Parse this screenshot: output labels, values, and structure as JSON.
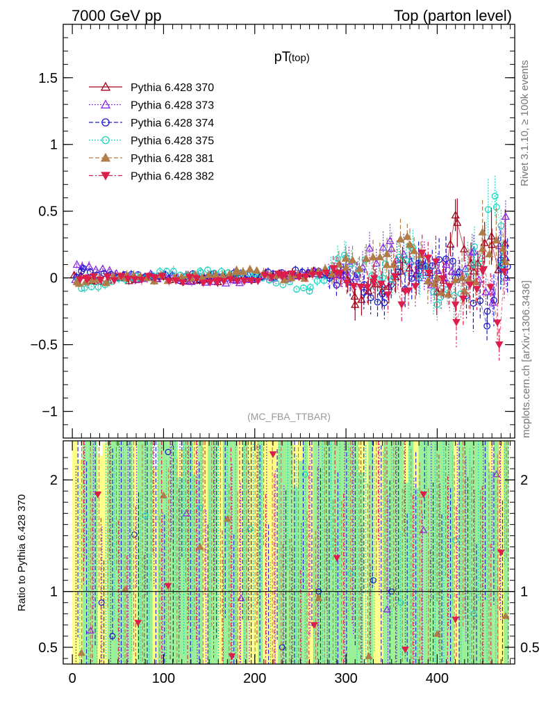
{
  "header": {
    "left_title": "7000 GeV pp",
    "right_title": "Top (parton level)"
  },
  "side_labels": {
    "rivet": "Rivet 3.1.10, ≥ 100k events",
    "mcplots": "mcplots.cern.ch [arXiv:1306.3436]"
  },
  "chart_data": [
    {
      "type": "scatter",
      "title": "pT",
      "title_sub": "(top)",
      "watermark": "(MC_FBA_TTBAR)",
      "xlabel": "",
      "ylabel": "",
      "xlim": [
        -10,
        485
      ],
      "ylim": [
        -1.2,
        1.9
      ],
      "yticks": [
        -1,
        -0.5,
        0,
        0.5,
        1,
        1.5
      ],
      "ytick_labels": [
        "−1",
        "−0.5",
        "0",
        "0.5",
        "1",
        "1.5"
      ],
      "legend_position": "top-left",
      "series": [
        {
          "name": "Pythia 6.428 370",
          "color": "#a00018",
          "marker": "triangle-open",
          "line": "solid",
          "x": [
            20,
            60,
            100,
            140,
            180,
            220,
            260,
            300,
            310,
            340,
            360,
            380,
            400,
            420,
            440,
            460,
            475
          ],
          "y": [
            -0.02,
            0.0,
            0.01,
            -0.01,
            0.0,
            0.02,
            0.03,
            0.05,
            -0.2,
            -0.05,
            0.05,
            0.1,
            -0.1,
            0.47,
            0.05,
            0.25,
            0.15
          ]
        },
        {
          "name": "Pythia 6.428 373",
          "color": "#8a2be2",
          "marker": "triangle-open",
          "line": "dotted",
          "x": [
            5,
            60,
            120,
            180,
            240,
            300,
            350,
            380,
            410,
            440,
            460,
            475
          ],
          "y": [
            0.1,
            0.01,
            0.0,
            -0.02,
            0.02,
            0.05,
            0.22,
            0.0,
            0.1,
            0.2,
            -0.1,
            0.46
          ]
        },
        {
          "name": "Pythia 6.428 374",
          "color": "#1a1acc",
          "marker": "circle-open",
          "line": "dashed",
          "x": [
            10,
            80,
            150,
            220,
            270,
            320,
            340,
            380,
            420,
            455,
            470
          ],
          "y": [
            0.05,
            0.0,
            0.01,
            0.03,
            0.05,
            -0.05,
            -0.12,
            0.05,
            0.0,
            -0.25,
            0.07
          ]
        },
        {
          "name": "Pythia 6.428 375",
          "color": "#20d2c0",
          "marker": "circle-open",
          "line": "dotted",
          "x": [
            10,
            70,
            140,
            200,
            260,
            300,
            340,
            370,
            400,
            440,
            465,
            470
          ],
          "y": [
            -0.08,
            0.01,
            0.05,
            0.03,
            -0.1,
            0.15,
            0.0,
            0.24,
            -0.2,
            0.1,
            0.53,
            0.39
          ]
        },
        {
          "name": "Pythia 6.428 381",
          "color": "#b07d48",
          "marker": "triangle-filled",
          "line": "dashed",
          "x": [
            5,
            60,
            130,
            180,
            240,
            300,
            345,
            370,
            400,
            430,
            450,
            475
          ],
          "y": [
            -0.03,
            0.0,
            0.0,
            0.06,
            0.0,
            0.08,
            0.18,
            0.25,
            0.0,
            -0.1,
            0.22,
            0.12
          ]
        },
        {
          "name": "Pythia 6.428 382",
          "color": "#dc1e4a",
          "marker": "triangle-down-filled",
          "line": "dashdot",
          "x": [
            15,
            90,
            160,
            230,
            290,
            330,
            365,
            390,
            420,
            450,
            468
          ],
          "y": [
            0.0,
            0.0,
            -0.02,
            0.01,
            0.04,
            -0.03,
            -0.1,
            0.15,
            -0.2,
            0.05,
            -0.5
          ]
        }
      ]
    },
    {
      "type": "scatter",
      "ylabel": "Ratio to Pythia 6.428 370",
      "xlabel": "",
      "xlim": [
        -10,
        485
      ],
      "ylim": [
        0.35,
        2.35
      ],
      "yticks": [
        0.5,
        1,
        2
      ],
      "ytick_labels": [
        "0.5",
        "1",
        "2"
      ],
      "xticks": [
        0,
        100,
        200,
        300,
        400
      ],
      "xtick_labels": [
        "0",
        "100",
        "200",
        "300",
        "400"
      ],
      "reference_line": 1,
      "bands": "green and yellow uncertainty bands",
      "series": [
        {
          "name": "Pythia 6.428 373",
          "x": [
            20,
            125,
            185,
            345,
            385,
            465
          ],
          "y": [
            0.65,
            1.7,
            0.94,
            0.84,
            1.55,
            2.05
          ]
        },
        {
          "name": "Pythia 6.428 374",
          "x": [
            32,
            44,
            68,
            105,
            230,
            270,
            330,
            350
          ],
          "y": [
            0.9,
            0.6,
            1.51,
            2.25,
            0.5,
            1.0,
            1.1,
            1.0
          ]
        },
        {
          "name": "Pythia 6.428 375",
          "x": [
            80,
            140,
            195,
            255,
            305,
            360,
            420,
            440
          ],
          "y": [
            1.68,
            1.75,
            1.56,
            2.05,
            1.16,
            0.9,
            1.46,
            0.8
          ]
        },
        {
          "name": "Pythia 6.428 381",
          "x": [
            10,
            58,
            100,
            140,
            170,
            270,
            325,
            400,
            475
          ],
          "y": [
            0.45,
            1.02,
            1.86,
            1.4,
            1.65,
            0.94,
            0.42,
            0.62,
            0.78
          ]
        },
        {
          "name": "Pythia 6.428 382",
          "x": [
            28,
            72,
            105,
            175,
            220,
            265,
            290,
            365,
            385,
            420,
            470
          ],
          "y": [
            1.87,
            0.72,
            1.05,
            0.42,
            2.23,
            0.7,
            1.3,
            0.48,
            1.87,
            0.75,
            1.35
          ]
        }
      ]
    }
  ]
}
